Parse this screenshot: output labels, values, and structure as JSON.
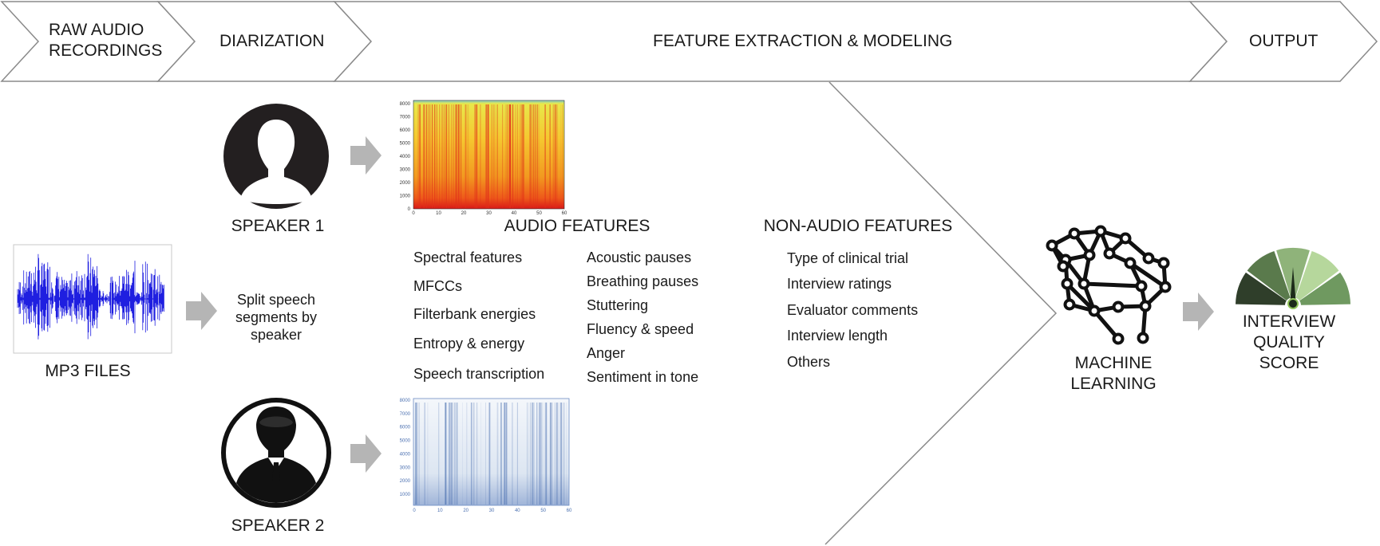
{
  "stages": [
    {
      "label": "RAW AUDIO\nRECORDINGS"
    },
    {
      "label": "DIARIZATION"
    },
    {
      "label": "FEATURE EXTRACTION & MODELING"
    },
    {
      "label": "OUTPUT"
    }
  ],
  "raw_audio": {
    "label": "MP3 FILES"
  },
  "diarization": {
    "split_label": "Split speech\nsegments by\nspeaker",
    "speaker1_label": "SPEAKER 1",
    "speaker2_label": "SPEAKER 2"
  },
  "spectrogram1": {
    "y_ticks": [
      "8000",
      "7000",
      "6000",
      "5000",
      "4000",
      "3000",
      "2000",
      "1000",
      "0"
    ],
    "x_ticks": [
      "0",
      "10",
      "20",
      "30",
      "40",
      "50",
      "60"
    ]
  },
  "spectrogram2": {
    "y_ticks": [
      "8000",
      "7000",
      "6000",
      "5000",
      "4000",
      "3000",
      "2000",
      "1000"
    ],
    "x_ticks": [
      "0",
      "10",
      "20",
      "30",
      "40",
      "50",
      "60"
    ]
  },
  "audio_features": {
    "title": "AUDIO FEATURES",
    "col1": [
      "Spectral features",
      "MFCCs",
      "Filterbank energies",
      "Entropy & energy",
      "Speech transcription"
    ],
    "col2": [
      "Acoustic pauses",
      "Breathing pauses",
      "Stuttering",
      "Fluency & speed",
      "Anger",
      "Sentiment in tone"
    ]
  },
  "non_audio_features": {
    "title": "NON-AUDIO FEATURES",
    "items": [
      "Type of clinical trial",
      "Interview ratings",
      "Evaluator comments",
      "Interview length",
      "Others"
    ]
  },
  "model": {
    "label": "MACHINE\nLEARNING"
  },
  "output": {
    "label": "INTERVIEW\nQUALITY\nSCORE"
  },
  "colors": {
    "stroke": "#8a8a8a",
    "arrow": "#b5b5b5",
    "waveform": "#1f1fe0",
    "spec2": "#4a6fb0",
    "gauge": [
      "#2f3e2a",
      "#5a7a4c",
      "#8fb37a",
      "#b6d79c",
      "#6f9960"
    ]
  }
}
